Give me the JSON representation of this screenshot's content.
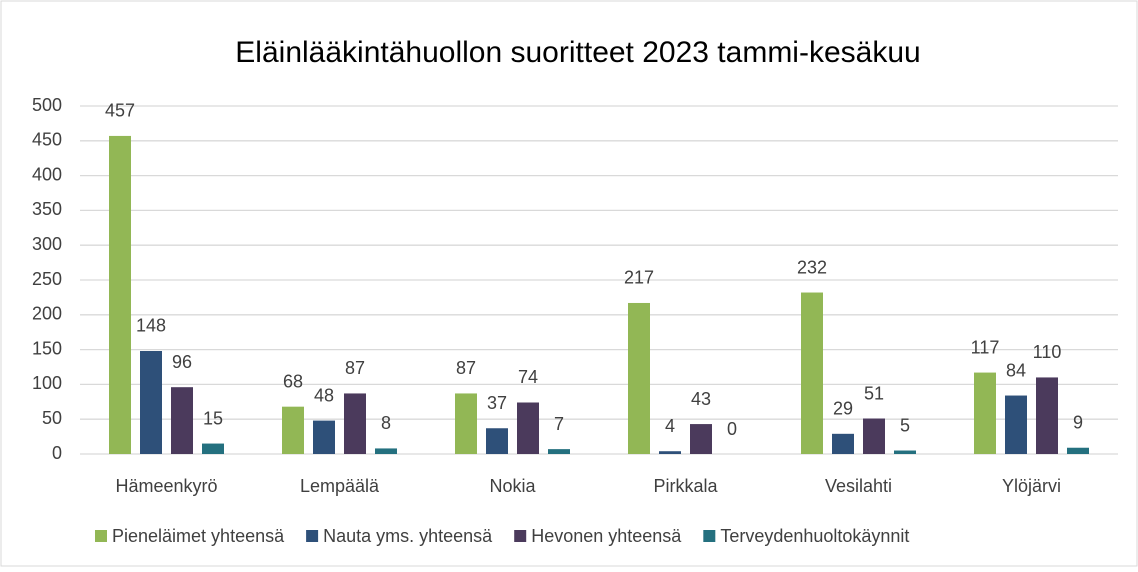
{
  "chart_data": {
    "type": "bar",
    "title": "Eläinlääkintähuollon suoritteet 2023 tammi-kesäkuu",
    "categories": [
      "Hämeenkyrö",
      "Lempäälä",
      "Nokia",
      "Pirkkala",
      "Vesilahti",
      "Ylöjärvi"
    ],
    "series": [
      {
        "name": "Pieneläimet yhteensä",
        "color": "#92b755",
        "values": [
          457,
          68,
          87,
          217,
          232,
          117
        ]
      },
      {
        "name": "Nauta yms. yhteensä",
        "color": "#2e5079",
        "values": [
          148,
          48,
          37,
          4,
          29,
          84
        ]
      },
      {
        "name": "Hevonen yhteensä",
        "color": "#4b3a5c",
        "values": [
          96,
          87,
          74,
          43,
          51,
          110
        ]
      },
      {
        "name": "Terveydenhuoltokäynnit",
        "color": "#24707f",
        "values": [
          15,
          8,
          7,
          0,
          5,
          9
        ]
      }
    ],
    "ylim": [
      0,
      500
    ],
    "yticks": [
      0,
      50,
      100,
      150,
      200,
      250,
      300,
      350,
      400,
      450,
      500
    ],
    "grid": true,
    "legend": "bottom"
  }
}
